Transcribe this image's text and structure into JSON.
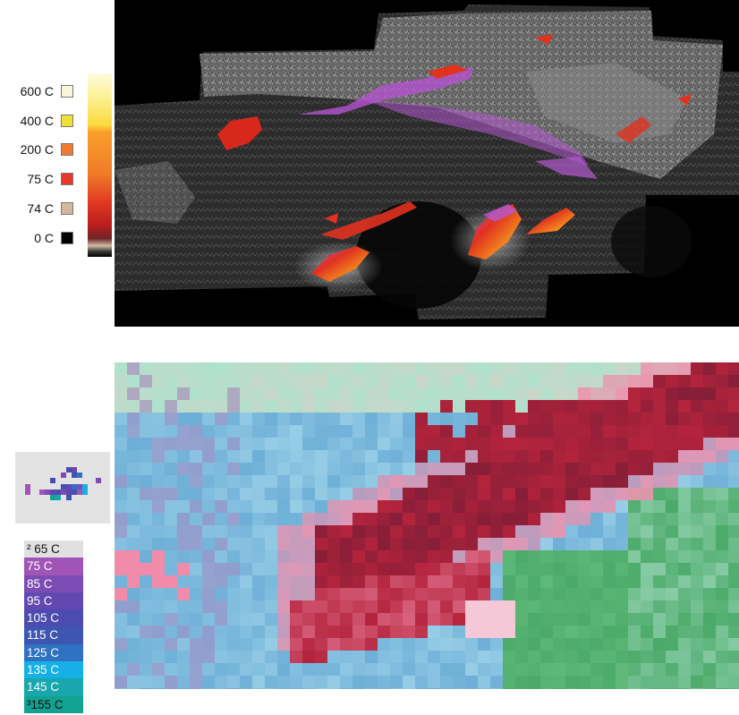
{
  "top_legend": {
    "entries": [
      {
        "label": "600 C",
        "color": "#fbf6d8"
      },
      {
        "label": "400 C",
        "color": "#efe03a"
      },
      {
        "label": "200 C",
        "color": "#ef7b35"
      },
      {
        "label": "75 C",
        "color": "#e43a2c"
      },
      {
        "label": "74 C",
        "color": "#d2b89c"
      },
      {
        "label": "0 C",
        "color": "#000000"
      }
    ],
    "ramp_colors": [
      "#fdf8c8",
      "#fce85a",
      "#f9b23a",
      "#f07a28",
      "#e24524",
      "#cd1e20",
      "#a51a22",
      "#6e2a2a",
      "#c8b7a3",
      "#111111"
    ]
  },
  "bottom_legend": {
    "entries": [
      {
        "label": "² 65 C",
        "color": "#e0e0e0",
        "text_color": "#111111"
      },
      {
        "label": "75 C",
        "color": "#a055b6",
        "text_color": "#ffffff"
      },
      {
        "label": "85 C",
        "color": "#7c4cb4",
        "text_color": "#ffffff"
      },
      {
        "label": "95 C",
        "color": "#6448b2",
        "text_color": "#ffffff"
      },
      {
        "label": "105 C",
        "color": "#4c4bb0",
        "text_color": "#ffffff"
      },
      {
        "label": "115 C",
        "color": "#3e56b2",
        "text_color": "#ffffff"
      },
      {
        "label": "125 C",
        "color": "#2f71c2",
        "text_color": "#ffffff"
      },
      {
        "label": "135 C",
        "color": "#15b1e6",
        "text_color": "#ffffff"
      },
      {
        "label": "145 C",
        "color": "#18a7ac",
        "text_color": "#ffffff"
      },
      {
        "label": "³155 C",
        "color": "#12a292",
        "text_color": "#111111"
      }
    ]
  },
  "colors": {
    "fire_hot": "#f7a51e",
    "fire_red": "#e0321f",
    "fire_purple": "#b45ad2",
    "terrain_gray": "#9a9a9a",
    "multispectral_blue": "#6fb7d8",
    "multispectral_red": "#b7243c",
    "multispectral_green": "#49a86a"
  }
}
